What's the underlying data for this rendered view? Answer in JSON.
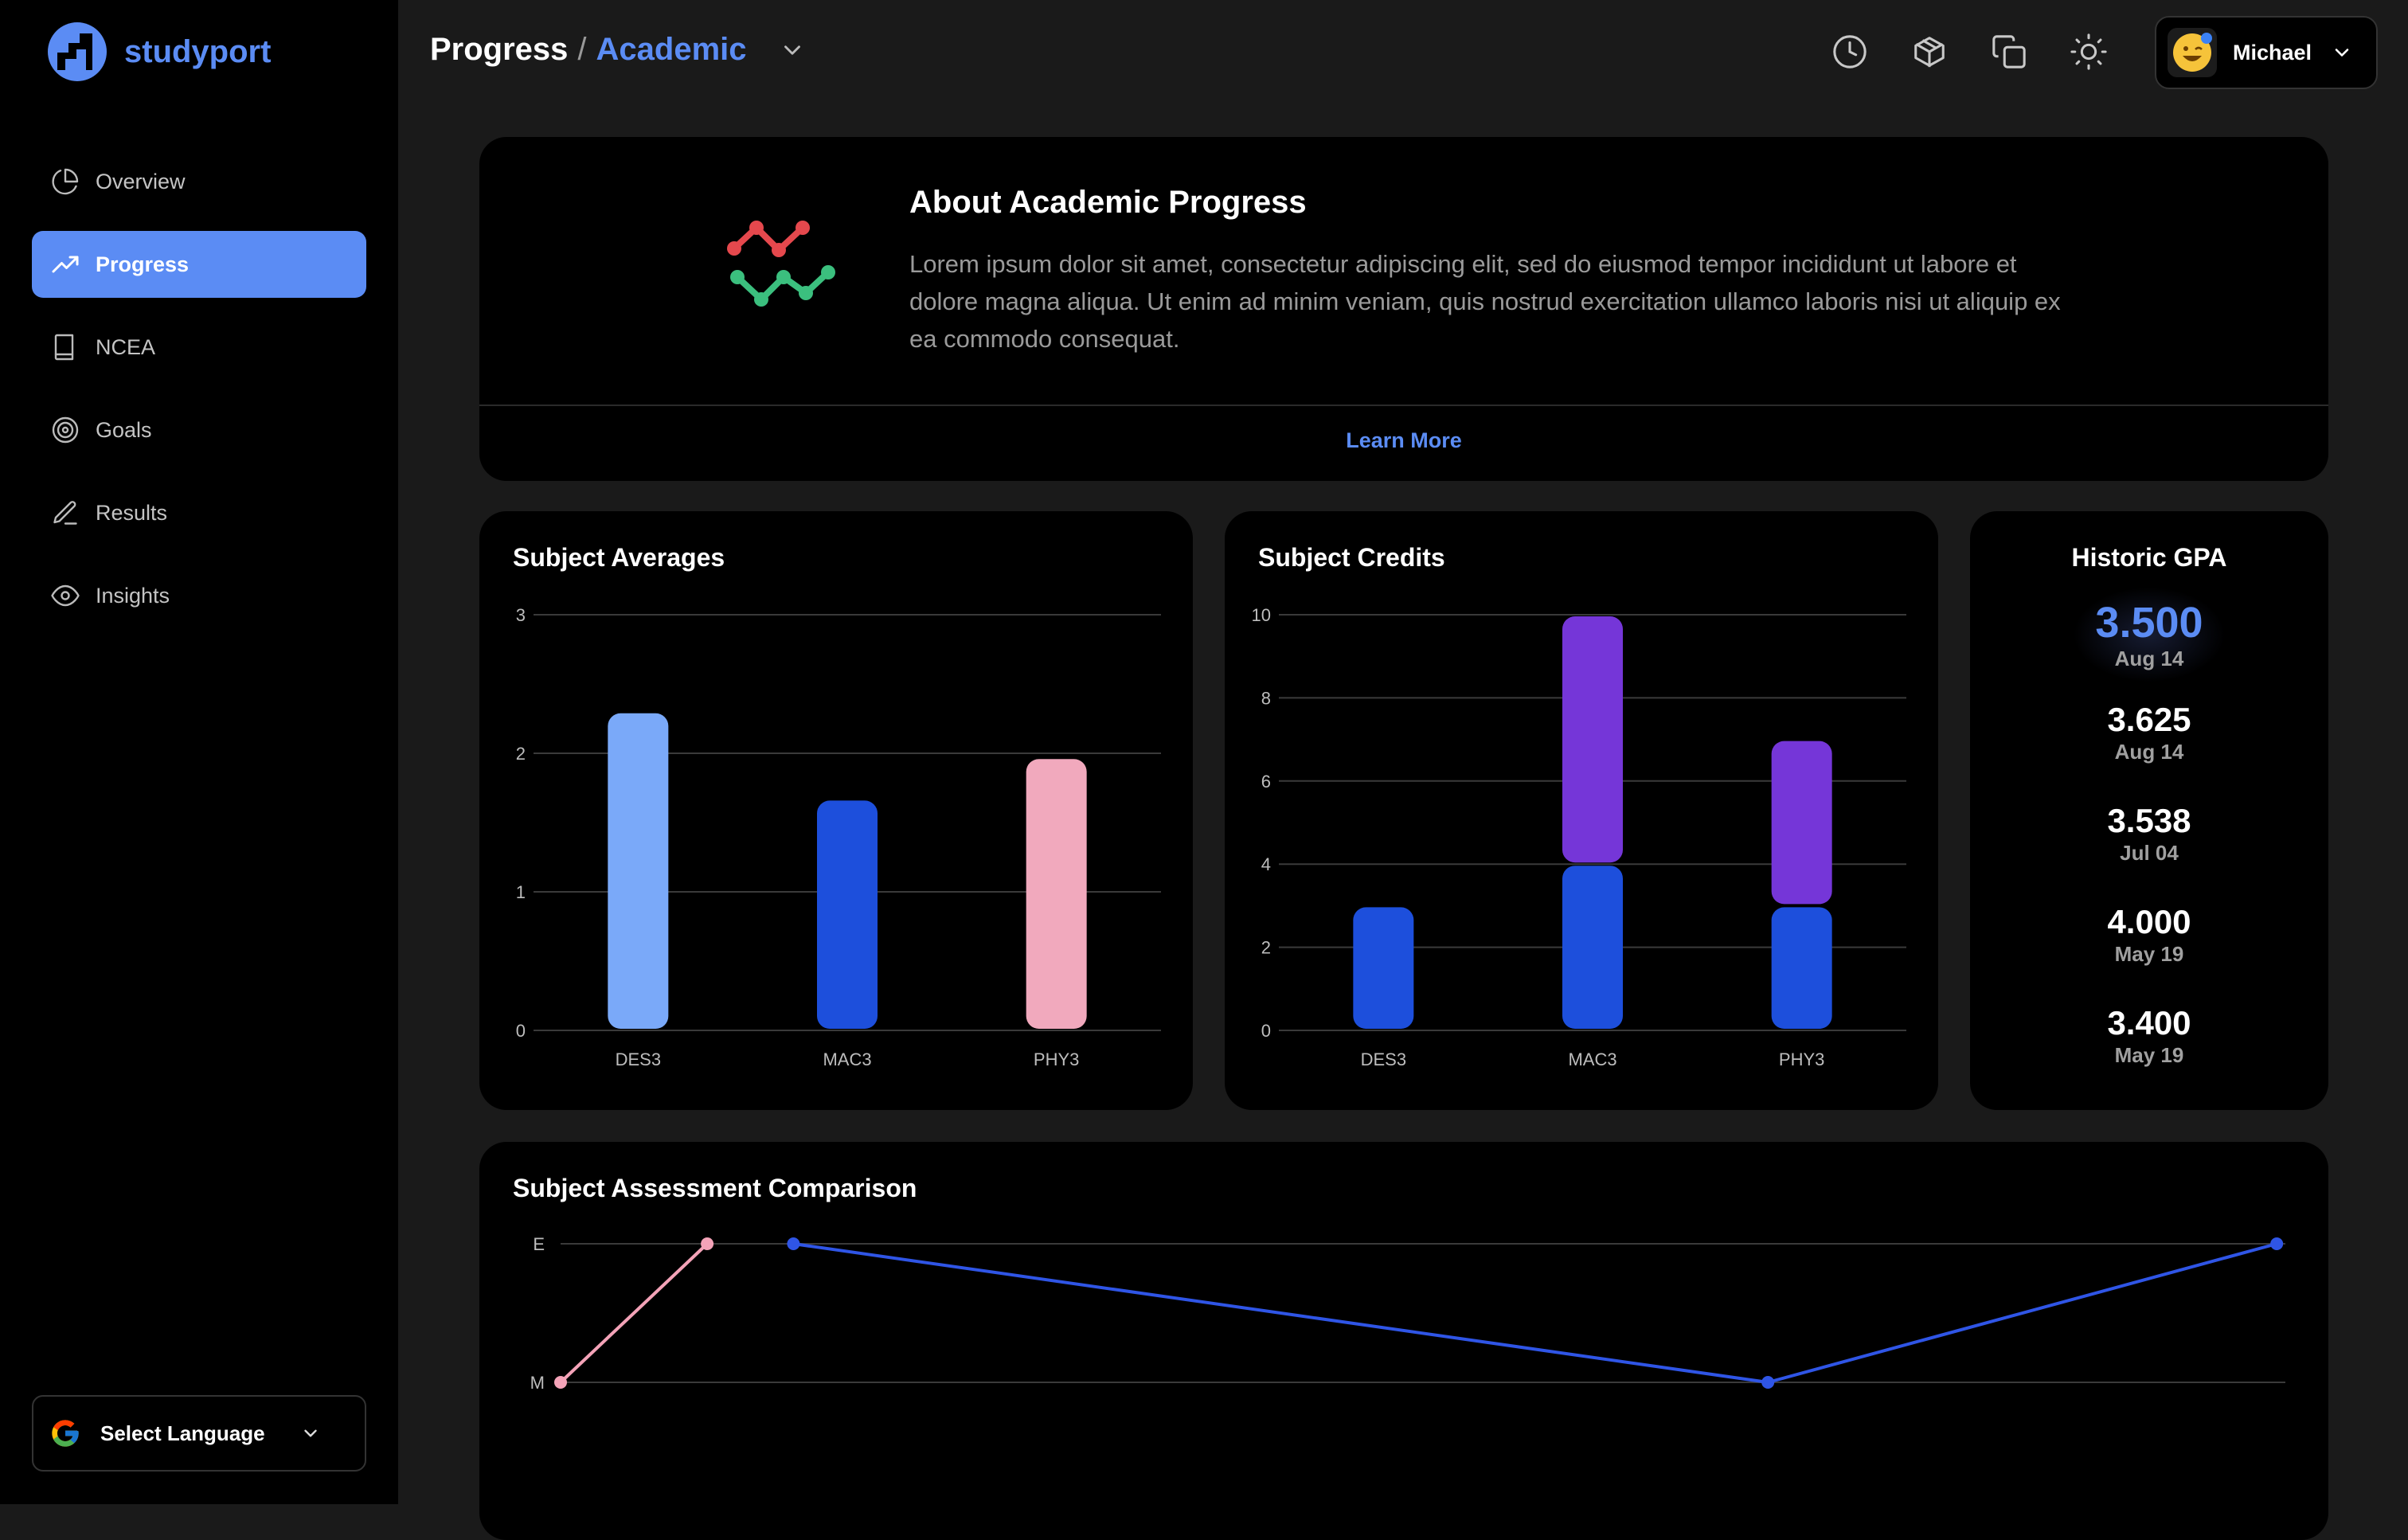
{
  "app": {
    "name": "studyport",
    "brand_color": "#5b8cf4"
  },
  "sidebar": {
    "items": [
      {
        "label": "Overview",
        "icon": "pie-chart-icon",
        "active": false
      },
      {
        "label": "Progress",
        "icon": "trending-up-icon",
        "active": true
      },
      {
        "label": "NCEA",
        "icon": "book-icon",
        "active": false
      },
      {
        "label": "Goals",
        "icon": "target-icon",
        "active": false
      },
      {
        "label": "Results",
        "icon": "pencil-icon",
        "active": false
      },
      {
        "label": "Insights",
        "icon": "eye-icon",
        "active": false
      }
    ],
    "language_label": "Select Language"
  },
  "header": {
    "crumb_primary": "Progress",
    "crumb_separator": "/",
    "crumb_secondary": "Academic",
    "icons": [
      "clock-icon",
      "package-icon",
      "copy-icon",
      "sun-icon"
    ],
    "user_name": "Michael"
  },
  "about": {
    "title": "About Academic Progress",
    "text": "Lorem ipsum dolor sit amet, consectetur adipiscing elit, sed do eiusmod tempor incididunt ut labore et dolore magna aliqua. Ut enim ad minim veniam, quis nostrud exercitation ullamco laboris nisi ut aliquip ex ea commodo consequat.",
    "link": "Learn More"
  },
  "averages": {
    "title": "Subject Averages"
  },
  "credits": {
    "title": "Subject Credits"
  },
  "gpa": {
    "title": "Historic GPA",
    "items": [
      {
        "value": "3.500",
        "date": "Aug 14"
      },
      {
        "value": "3.625",
        "date": "Aug 14"
      },
      {
        "value": "3.538",
        "date": "Jul 04"
      },
      {
        "value": "4.000",
        "date": "May 19"
      },
      {
        "value": "3.400",
        "date": "May 19"
      }
    ]
  },
  "comparison": {
    "title": "Subject Assessment Comparison"
  },
  "chart_data": [
    {
      "type": "bar",
      "title": "Subject Averages",
      "categories": [
        "DES3",
        "MAC3",
        "PHY3"
      ],
      "values": [
        2.3,
        1.67,
        1.97
      ],
      "colors": [
        "#7aa9f9",
        "#1d4fdc",
        "#f1a9bd"
      ],
      "ylim": [
        0,
        3
      ],
      "yticks": [
        0,
        1,
        2,
        3
      ],
      "grid": true
    },
    {
      "type": "bar",
      "title": "Subject Credits",
      "stacked": true,
      "categories": [
        "DES3",
        "MAC3",
        "PHY3"
      ],
      "series": [
        {
          "values": [
            3,
            4,
            3
          ],
          "color": "#1d4fdc"
        },
        {
          "values": [
            0,
            6,
            4
          ],
          "color": "#7536d8"
        }
      ],
      "ylim": [
        0,
        10
      ],
      "yticks": [
        0,
        2,
        4,
        6,
        8,
        10
      ],
      "grid": true
    },
    {
      "type": "line",
      "title": "Subject Assessment Comparison",
      "ycategories": [
        "M",
        "E"
      ],
      "series": [
        {
          "color": "#f4a3b8",
          "points": [
            [
              0.0,
              "M"
            ],
            [
              0.085,
              "E"
            ]
          ]
        },
        {
          "color": "#2f55e6",
          "points": [
            [
              0.135,
              "E"
            ],
            [
              0.7,
              "M"
            ],
            [
              0.995,
              "E"
            ]
          ]
        }
      ],
      "grid": true
    }
  ]
}
